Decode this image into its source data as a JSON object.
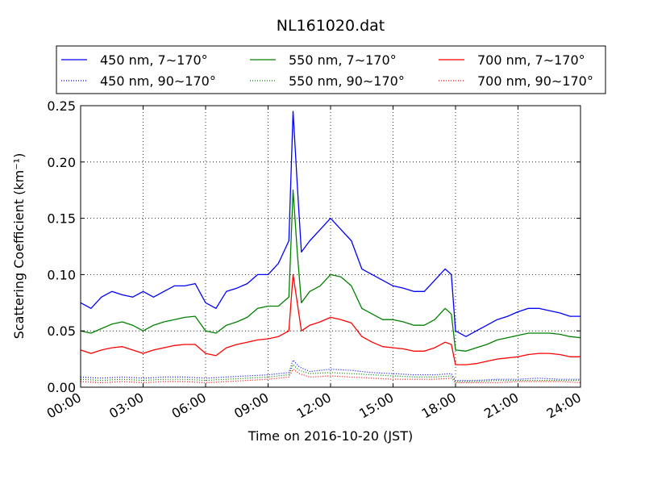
{
  "chart_data": {
    "type": "line",
    "title": "NL161020.dat",
    "xlabel": "Time on 2016-10-20 (JST)",
    "ylabel": "Scattering Coefficient (km⁻¹)",
    "xlim_hours": [
      0,
      24
    ],
    "ylim": [
      0,
      0.25
    ],
    "x_ticks": [
      "00:00",
      "03:00",
      "06:00",
      "09:00",
      "12:00",
      "15:00",
      "18:00",
      "21:00",
      "24:00"
    ],
    "y_ticks": [
      "0.00",
      "0.05",
      "0.10",
      "0.15",
      "0.20",
      "0.25"
    ],
    "grid": true,
    "legend_position": "top, outside plot",
    "x_units": "hours",
    "series": [
      {
        "name": "450 nm, 7∼170°",
        "color": "#0000ff",
        "style": "solid",
        "x": [
          0,
          0.5,
          1,
          1.5,
          2,
          2.5,
          3,
          3.5,
          4,
          4.5,
          5,
          5.5,
          6,
          6.5,
          7,
          7.5,
          8,
          8.5,
          9,
          9.5,
          10,
          10.2,
          10.4,
          10.6,
          11,
          11.5,
          12,
          12.5,
          13,
          13.5,
          14,
          14.5,
          15,
          15.5,
          16,
          16.5,
          17,
          17.5,
          17.8,
          18,
          18.5,
          19,
          19.5,
          20,
          20.5,
          21,
          21.5,
          22,
          22.5,
          23,
          23.5,
          24
        ],
        "y": [
          0.075,
          0.07,
          0.08,
          0.085,
          0.082,
          0.08,
          0.085,
          0.08,
          0.085,
          0.09,
          0.09,
          0.092,
          0.075,
          0.07,
          0.085,
          0.088,
          0.092,
          0.1,
          0.1,
          0.11,
          0.13,
          0.245,
          0.18,
          0.12,
          0.13,
          0.14,
          0.15,
          0.14,
          0.13,
          0.105,
          0.1,
          0.095,
          0.09,
          0.088,
          0.085,
          0.085,
          0.095,
          0.105,
          0.1,
          0.05,
          0.045,
          0.05,
          0.055,
          0.06,
          0.063,
          0.067,
          0.07,
          0.07,
          0.068,
          0.066,
          0.063,
          0.063
        ]
      },
      {
        "name": "550 nm, 7∼170°",
        "color": "#008000",
        "style": "solid",
        "x": [
          0,
          0.5,
          1,
          1.5,
          2,
          2.5,
          3,
          3.5,
          4,
          4.5,
          5,
          5.5,
          6,
          6.5,
          7,
          7.5,
          8,
          8.5,
          9,
          9.5,
          10,
          10.2,
          10.4,
          10.6,
          11,
          11.5,
          12,
          12.5,
          13,
          13.5,
          14,
          14.5,
          15,
          15.5,
          16,
          16.5,
          17,
          17.5,
          17.8,
          18,
          18.5,
          19,
          19.5,
          20,
          20.5,
          21,
          21.5,
          22,
          22.5,
          23,
          23.5,
          24
        ],
        "y": [
          0.05,
          0.048,
          0.052,
          0.056,
          0.058,
          0.055,
          0.05,
          0.055,
          0.058,
          0.06,
          0.062,
          0.063,
          0.05,
          0.048,
          0.055,
          0.058,
          0.062,
          0.07,
          0.072,
          0.072,
          0.08,
          0.175,
          0.12,
          0.075,
          0.085,
          0.09,
          0.1,
          0.098,
          0.09,
          0.07,
          0.065,
          0.06,
          0.06,
          0.058,
          0.055,
          0.055,
          0.06,
          0.07,
          0.065,
          0.033,
          0.032,
          0.035,
          0.038,
          0.042,
          0.044,
          0.046,
          0.048,
          0.048,
          0.048,
          0.047,
          0.045,
          0.044
        ]
      },
      {
        "name": "700 nm, 7∼170°",
        "color": "#ff0000",
        "style": "solid",
        "x": [
          0,
          0.5,
          1,
          1.5,
          2,
          2.5,
          3,
          3.5,
          4,
          4.5,
          5,
          5.5,
          6,
          6.5,
          7,
          7.5,
          8,
          8.5,
          9,
          9.5,
          10,
          10.2,
          10.4,
          10.6,
          11,
          11.5,
          12,
          12.5,
          13,
          13.5,
          14,
          14.5,
          15,
          15.5,
          16,
          16.5,
          17,
          17.5,
          17.8,
          18,
          18.5,
          19,
          19.5,
          20,
          20.5,
          21,
          21.5,
          22,
          22.5,
          23,
          23.5,
          24
        ],
        "y": [
          0.033,
          0.03,
          0.033,
          0.035,
          0.036,
          0.033,
          0.03,
          0.033,
          0.035,
          0.037,
          0.038,
          0.038,
          0.03,
          0.028,
          0.035,
          0.038,
          0.04,
          0.042,
          0.043,
          0.045,
          0.05,
          0.1,
          0.075,
          0.05,
          0.055,
          0.058,
          0.062,
          0.06,
          0.057,
          0.045,
          0.04,
          0.036,
          0.035,
          0.034,
          0.032,
          0.032,
          0.035,
          0.04,
          0.038,
          0.02,
          0.02,
          0.021,
          0.023,
          0.025,
          0.026,
          0.027,
          0.029,
          0.03,
          0.03,
          0.029,
          0.027,
          0.027
        ]
      },
      {
        "name": "450 nm, 90∼170°",
        "color": "#0000ff",
        "style": "dotted",
        "x": [
          0,
          1,
          2,
          3,
          4,
          5,
          6,
          7,
          8,
          9,
          10,
          10.2,
          10.5,
          11,
          12,
          13,
          14,
          15,
          16,
          17,
          17.8,
          18,
          19,
          20,
          21,
          22,
          23,
          24
        ],
        "y": [
          0.009,
          0.008,
          0.009,
          0.008,
          0.009,
          0.009,
          0.008,
          0.009,
          0.01,
          0.011,
          0.013,
          0.024,
          0.018,
          0.014,
          0.016,
          0.015,
          0.013,
          0.012,
          0.011,
          0.011,
          0.012,
          0.006,
          0.006,
          0.007,
          0.007,
          0.008,
          0.007,
          0.007
        ]
      },
      {
        "name": "550 nm, 90∼170°",
        "color": "#008000",
        "style": "dotted",
        "x": [
          0,
          1,
          2,
          3,
          4,
          5,
          6,
          7,
          8,
          9,
          10,
          10.2,
          10.5,
          11,
          12,
          13,
          14,
          15,
          16,
          17,
          17.8,
          18,
          19,
          20,
          21,
          22,
          23,
          24
        ],
        "y": [
          0.007,
          0.006,
          0.007,
          0.006,
          0.007,
          0.007,
          0.006,
          0.007,
          0.008,
          0.009,
          0.011,
          0.02,
          0.015,
          0.012,
          0.013,
          0.012,
          0.011,
          0.01,
          0.009,
          0.009,
          0.01,
          0.005,
          0.005,
          0.006,
          0.006,
          0.006,
          0.006,
          0.006
        ]
      },
      {
        "name": "700 nm, 90∼170°",
        "color": "#ff0000",
        "style": "dotted",
        "x": [
          0,
          1,
          2,
          3,
          4,
          5,
          6,
          7,
          8,
          9,
          10,
          10.2,
          10.5,
          11,
          12,
          13,
          14,
          15,
          16,
          17,
          17.8,
          18,
          19,
          20,
          21,
          22,
          23,
          24
        ],
        "y": [
          0.005,
          0.004,
          0.005,
          0.004,
          0.005,
          0.005,
          0.004,
          0.005,
          0.006,
          0.007,
          0.009,
          0.016,
          0.012,
          0.009,
          0.01,
          0.009,
          0.008,
          0.007,
          0.007,
          0.007,
          0.008,
          0.004,
          0.004,
          0.004,
          0.005,
          0.005,
          0.005,
          0.004
        ]
      }
    ]
  }
}
